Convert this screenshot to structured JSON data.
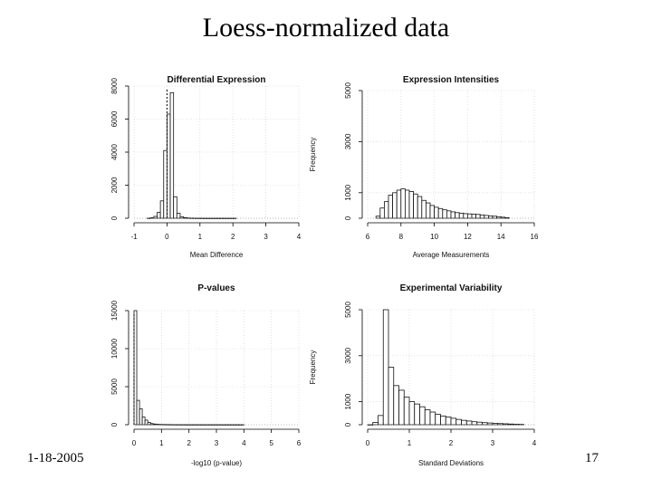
{
  "slide": {
    "title": "Loess-normalized data",
    "date": "1-18-2005",
    "page": "17"
  },
  "chart_data": [
    {
      "type": "bar",
      "title": "Differential Expression",
      "xlabel": "Mean Difference",
      "ylabel": "",
      "xlim": [
        -1,
        4
      ],
      "ylim": [
        0,
        8000
      ],
      "xticks": [
        "-1",
        "0",
        "1",
        "2",
        "3",
        "4"
      ],
      "yticks": [
        "0",
        "2000",
        "4000",
        "6000",
        "8000"
      ],
      "bin_width": 0.1,
      "bin_start": -0.6,
      "values": [
        5,
        30,
        110,
        350,
        1050,
        4100,
        6300,
        7600,
        1300,
        300,
        90,
        40,
        15,
        8,
        5,
        3,
        2,
        1,
        1,
        1,
        1,
        1,
        1,
        1,
        1,
        1,
        1
      ],
      "ref_line_x": 0.0
    },
    {
      "type": "bar",
      "title": "Expression Intensities",
      "xlabel": "Average Measurements",
      "ylabel": "Frequency",
      "xlim": [
        6,
        16
      ],
      "ylim": [
        0,
        5000
      ],
      "xticks": [
        "6",
        "8",
        "10",
        "12",
        "14",
        "16"
      ],
      "yticks": [
        "0",
        "1000",
        "3000",
        "5000"
      ],
      "bin_width": 0.25,
      "bin_start": 6.5,
      "values": [
        80,
        400,
        650,
        900,
        1000,
        1100,
        1150,
        1100,
        1050,
        950,
        850,
        700,
        600,
        500,
        430,
        380,
        330,
        290,
        250,
        220,
        200,
        180,
        170,
        160,
        150,
        130,
        110,
        90,
        80,
        60,
        40,
        20
      ]
    },
    {
      "type": "bar",
      "title": "P-values",
      "xlabel": "-log10 (p-value)",
      "ylabel": "",
      "xlim": [
        0,
        6
      ],
      "ylim": [
        0,
        15000
      ],
      "xticks": [
        "0",
        "1",
        "2",
        "3",
        "4",
        "5",
        "6"
      ],
      "yticks": [
        "0",
        "5000",
        "10000",
        "15000"
      ],
      "bin_width": 0.1,
      "bin_start": 0.0,
      "values": [
        15200,
        3200,
        2100,
        1000,
        600,
        300,
        150,
        90,
        60,
        40,
        30,
        25,
        20,
        15,
        12,
        10,
        8,
        7,
        6,
        5,
        4,
        4,
        3,
        3,
        3,
        2,
        2,
        2,
        2,
        2,
        2,
        2,
        2,
        2,
        1,
        1,
        1,
        1,
        1,
        1
      ],
      "ref_line_x": 0.0
    },
    {
      "type": "bar",
      "title": "Experimental Variability",
      "xlabel": "Standard Deviations",
      "ylabel": "Frequency",
      "xlim": [
        0,
        4
      ],
      "ylim": [
        0,
        5000
      ],
      "xticks": [
        "0",
        "1",
        "2",
        "3",
        "4"
      ],
      "yticks": [
        "0",
        "1000",
        "3000",
        "5000"
      ],
      "bin_width": 0.125,
      "bin_start": 0.0,
      "values": [
        0,
        100,
        400,
        5800,
        2500,
        1700,
        1500,
        1200,
        1000,
        900,
        780,
        650,
        550,
        450,
        380,
        330,
        280,
        230,
        190,
        160,
        130,
        110,
        90,
        75,
        60,
        50,
        40,
        30,
        20,
        15
      ]
    }
  ]
}
